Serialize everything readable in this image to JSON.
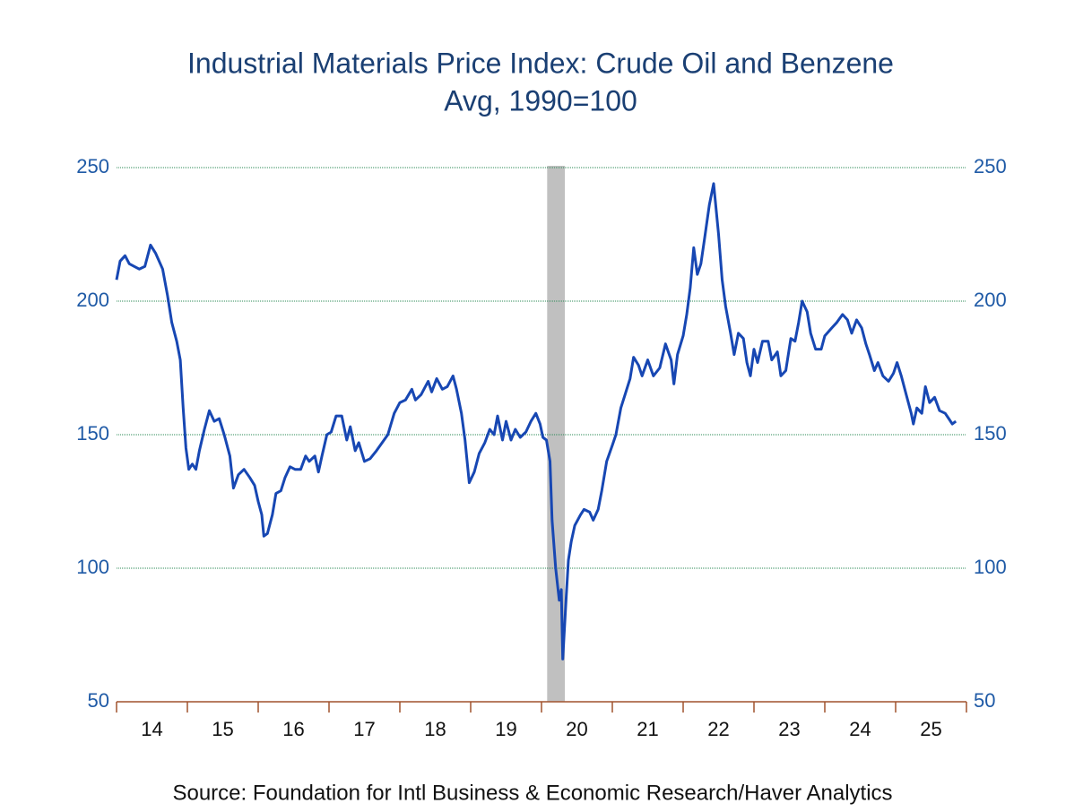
{
  "chart_data": {
    "type": "line",
    "title": "Industrial Materials Price Index: Crude Oil and Benzene",
    "subtitle": "Avg, 1990=100",
    "source": "Source:  Foundation for Intl Business & Economic Research/Haver Analytics",
    "x": [
      14.0,
      14.05,
      14.12,
      14.18,
      14.25,
      14.32,
      14.4,
      14.48,
      14.55,
      14.65,
      14.72,
      14.78,
      14.85,
      14.9,
      14.94,
      14.98,
      15.02,
      15.07,
      15.12,
      15.17,
      15.24,
      15.31,
      15.38,
      15.45,
      15.52,
      15.6,
      15.65,
      15.72,
      15.8,
      15.88,
      15.95,
      16.0,
      16.05,
      16.08,
      16.13,
      16.2,
      16.25,
      16.32,
      16.38,
      16.45,
      16.52,
      16.6,
      16.67,
      16.72,
      16.8,
      16.85,
      16.9,
      16.97,
      17.03,
      17.1,
      17.18,
      17.25,
      17.3,
      17.37,
      17.42,
      17.5,
      17.58,
      17.67,
      17.75,
      17.83,
      17.92,
      18.0,
      18.08,
      18.17,
      18.22,
      18.3,
      18.4,
      18.45,
      18.52,
      18.6,
      18.67,
      18.75,
      18.8,
      18.87,
      18.92,
      18.98,
      19.05,
      19.12,
      19.2,
      19.27,
      19.33,
      19.38,
      19.45,
      19.5,
      19.57,
      19.63,
      19.7,
      19.78,
      19.85,
      19.92,
      19.98,
      20.02,
      20.07,
      20.12,
      20.15,
      20.2,
      20.25,
      20.28,
      20.3,
      20.35,
      20.38,
      20.42,
      20.47,
      20.55,
      20.6,
      20.68,
      20.73,
      20.8,
      20.85,
      20.92,
      21.0,
      21.05,
      21.12,
      21.18,
      21.25,
      21.3,
      21.37,
      21.42,
      21.5,
      21.58,
      21.67,
      21.75,
      21.83,
      21.87,
      21.92,
      22.0,
      22.05,
      22.1,
      22.15,
      22.2,
      22.25,
      22.3,
      22.37,
      22.43,
      22.5,
      22.55,
      22.6,
      22.67,
      22.72,
      22.78,
      22.85,
      22.9,
      22.95,
      23.0,
      23.05,
      23.12,
      23.2,
      23.25,
      23.33,
      23.38,
      23.45,
      23.52,
      23.58,
      23.63,
      23.68,
      23.75,
      23.8,
      23.87,
      23.95,
      24.0,
      24.1,
      24.17,
      24.25,
      24.32,
      24.38,
      24.45,
      24.52,
      24.58,
      24.63,
      24.7,
      24.75,
      24.82,
      24.9,
      24.97,
      25.02,
      25.08,
      25.15,
      25.22,
      25.25,
      25.3,
      25.37,
      25.42,
      25.48,
      25.55,
      25.62,
      25.7,
      25.75,
      25.8,
      25.85
    ],
    "values": [
      208,
      215,
      217,
      214,
      213,
      212,
      213,
      221,
      218,
      212,
      202,
      192,
      185,
      178,
      160,
      145,
      137,
      139,
      137,
      144,
      152,
      159,
      155,
      156,
      150,
      142,
      130,
      135,
      137,
      134,
      131,
      125,
      120,
      112,
      113,
      120,
      128,
      129,
      134,
      138,
      137,
      137,
      142,
      140,
      142,
      136,
      142,
      150,
      151,
      157,
      157,
      148,
      153,
      144,
      147,
      140,
      141,
      144,
      147,
      150,
      158,
      162,
      163,
      167,
      163,
      165,
      170,
      166,
      171,
      167,
      168,
      172,
      167,
      158,
      148,
      132,
      136,
      143,
      147,
      152,
      150,
      157,
      148,
      155,
      148,
      152,
      149,
      151,
      155,
      158,
      154,
      149,
      148,
      140,
      118,
      100,
      88,
      92,
      66,
      90,
      103,
      110,
      116,
      120,
      122,
      121,
      118,
      122,
      129,
      140,
      146,
      150,
      160,
      165,
      171,
      179,
      176,
      172,
      178,
      172,
      175,
      184,
      178,
      169,
      180,
      187,
      195,
      205,
      220,
      210,
      214,
      223,
      236,
      244,
      225,
      208,
      198,
      188,
      180,
      188,
      186,
      177,
      172,
      182,
      177,
      185,
      185,
      178,
      181,
      172,
      174,
      186,
      185,
      192,
      200,
      196,
      188,
      182,
      182,
      187,
      190,
      192,
      195,
      193,
      188,
      193,
      190,
      184,
      180,
      174,
      177,
      172,
      170,
      173,
      177,
      172,
      165,
      158,
      154,
      160,
      158,
      168,
      162,
      164,
      159,
      158,
      156,
      154,
      155
    ],
    "color": "#1747b3",
    "shaded_x": [
      20.08,
      20.33
    ],
    "xlim": [
      14,
      26
    ],
    "xticks": [
      {
        "value": 14.5,
        "label": "14"
      },
      {
        "value": 15.5,
        "label": "15"
      },
      {
        "value": 16.5,
        "label": "16"
      },
      {
        "value": 17.5,
        "label": "17"
      },
      {
        "value": 18.5,
        "label": "18"
      },
      {
        "value": 19.5,
        "label": "19"
      },
      {
        "value": 20.5,
        "label": "20"
      },
      {
        "value": 21.5,
        "label": "21"
      },
      {
        "value": 22.5,
        "label": "22"
      },
      {
        "value": 23.5,
        "label": "23"
      },
      {
        "value": 24.5,
        "label": "24"
      },
      {
        "value": 25.5,
        "label": "25"
      }
    ],
    "ylim": [
      50,
      250
    ],
    "yticks": [
      50,
      100,
      150,
      200,
      250
    ],
    "grid": true
  }
}
